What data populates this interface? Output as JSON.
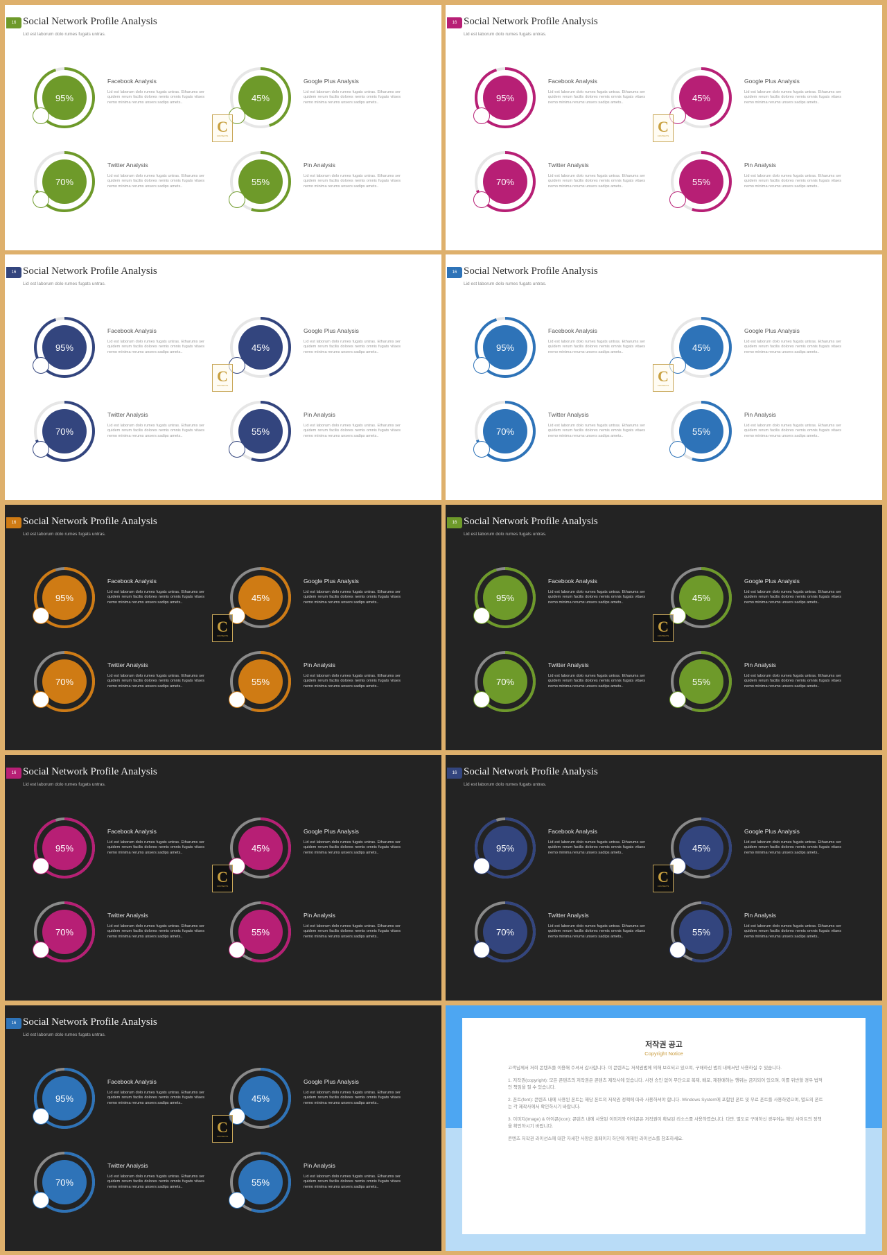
{
  "common": {
    "badge_text": "16",
    "title": "Social Network Profile Analysis",
    "subtitle": "Lid est laborum dolo rumes fugats untras.",
    "items": [
      {
        "label": "Facebook Analysis",
        "value": "95%"
      },
      {
        "label": "Google Plus  Analysis",
        "value": "45%"
      },
      {
        "label": "Twitter Analysis",
        "value": "70%"
      },
      {
        "label": "Pin Analysis",
        "value": "55%"
      }
    ],
    "item_text": "Lid est laborum dolo rumes fugats untras. Etharums ser quidem rerum facilis dolores nemis omnis fugats vitaes nemo minima rerums unsers sadips amets..",
    "logo_letter": "C",
    "logo_word": "CONTENTS"
  },
  "progress": [
    0.95,
    0.45,
    0.7,
    0.55
  ],
  "slides": [
    {
      "theme": "light",
      "accent": "#6e9a2a"
    },
    {
      "theme": "light",
      "accent": "#b71f75"
    },
    {
      "theme": "light",
      "accent": "#33457e"
    },
    {
      "theme": "light",
      "accent": "#2e73b8"
    },
    {
      "theme": "dark",
      "accent": "#cf7b14"
    },
    {
      "theme": "dark",
      "accent": "#6e9a2a"
    },
    {
      "theme": "dark",
      "accent": "#b71f75"
    },
    {
      "theme": "dark",
      "accent": "#33457e"
    },
    {
      "theme": "dark",
      "accent": "#2e73b8"
    }
  ],
  "copyright": {
    "title": "저작권 공고",
    "subtitle": "Copyright Notice",
    "paragraphs": [
      "고객님께서 저희 콘텐츠를 이용해 주셔서 감사합니다. 이 콘텐츠는 저작권법에 의해 보호되고 있으며, 구매하신 범위 내에서만 사용하실 수 있습니다.",
      "1. 저작권(copyright): 모든 콘텐츠의 저작권은 콘텐츠 제작사에 있습니다. 사전 승인 없이 무단으로 복제, 배포, 재판매하는 행위는 금지되어 있으며, 이를 위반할 경우 법적인 책임을 질 수 있습니다.",
      "2. 폰트(font): 콘텐츠 내에 사용된 폰트는 해당 폰트의 저작권 정책에 따라 사용하셔야 합니다. Windows System에 포함된 폰트 및 무료 폰트를 사용하였으며, 별도의 폰트는 각 제작사에서 확인하시기 바랍니다.",
      "3. 이미지(image) & 아이콘(icon): 콘텐츠 내에 사용된 이미지와 아이콘은 저작권이 확보된 리소스를 사용하였습니다. 다만, 별도로 구매하신 경우에는 해당 사이트의 정책을 확인하시기 바랍니다.",
      "콘텐츠 저작권 라이선스에 대한 자세한 사항은 홈페이지 하단에 게재된 라이선스를 참조하세요."
    ]
  }
}
